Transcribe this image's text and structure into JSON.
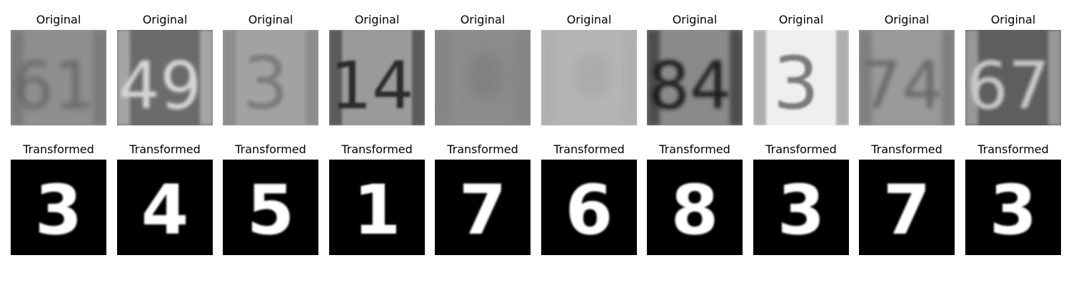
{
  "rows": [
    {
      "label": "Original",
      "style": "svhn",
      "images": [
        {
          "digit": "61",
          "bg": "#8f8f8f",
          "fg": "#6a6a6a",
          "blur": 4.0
        },
        {
          "digit": "49",
          "bg": "#6b6b6b",
          "fg": "#d6d6d6",
          "blur": 2.5
        },
        {
          "digit": "3",
          "bg": "#a2a2a2",
          "fg": "#7d7d7d",
          "blur": 2.5
        },
        {
          "digit": "14",
          "bg": "#9a9a9a",
          "fg": "#2a2a2a",
          "blur": 1.5
        },
        {
          "digit": "?",
          "bg": "#8c8c8c",
          "fg": "#7a7a7a",
          "blur": 9.0
        },
        {
          "digit": "?",
          "bg": "#b5b5b5",
          "fg": "#a6a6a6",
          "blur": 8.0
        },
        {
          "digit": "84",
          "bg": "#8a8a8a",
          "fg": "#1e1e1e",
          "blur": 3.0
        },
        {
          "digit": "3",
          "bg": "#efefef",
          "fg": "#7a7a7a",
          "blur": 1.5
        },
        {
          "digit": "74",
          "bg": "#9a9a9a",
          "fg": "#6a6a6a",
          "blur": 3.5
        },
        {
          "digit": "67",
          "bg": "#5e5e5e",
          "fg": "#c8c8c8",
          "blur": 2.5
        }
      ]
    },
    {
      "label": "Transformed",
      "style": "mnist",
      "images": [
        {
          "digit": "3",
          "bg": "#000000",
          "fg": "#ffffff",
          "blur": 1.2
        },
        {
          "digit": "4",
          "bg": "#000000",
          "fg": "#ffffff",
          "blur": 1.2
        },
        {
          "digit": "5",
          "bg": "#000000",
          "fg": "#ffffff",
          "blur": 1.2
        },
        {
          "digit": "1",
          "bg": "#000000",
          "fg": "#ffffff",
          "blur": 1.0
        },
        {
          "digit": "7",
          "bg": "#000000",
          "fg": "#ffffff",
          "blur": 1.2
        },
        {
          "digit": "6",
          "bg": "#000000",
          "fg": "#ffffff",
          "blur": 1.2
        },
        {
          "digit": "8",
          "bg": "#000000",
          "fg": "#ffffff",
          "blur": 1.2
        },
        {
          "digit": "3",
          "bg": "#000000",
          "fg": "#ffffff",
          "blur": 1.2
        },
        {
          "digit": "7",
          "bg": "#000000",
          "fg": "#ffffff",
          "blur": 1.2
        },
        {
          "digit": "3",
          "bg": "#000000",
          "fg": "#ffffff",
          "blur": 1.2
        }
      ]
    }
  ]
}
